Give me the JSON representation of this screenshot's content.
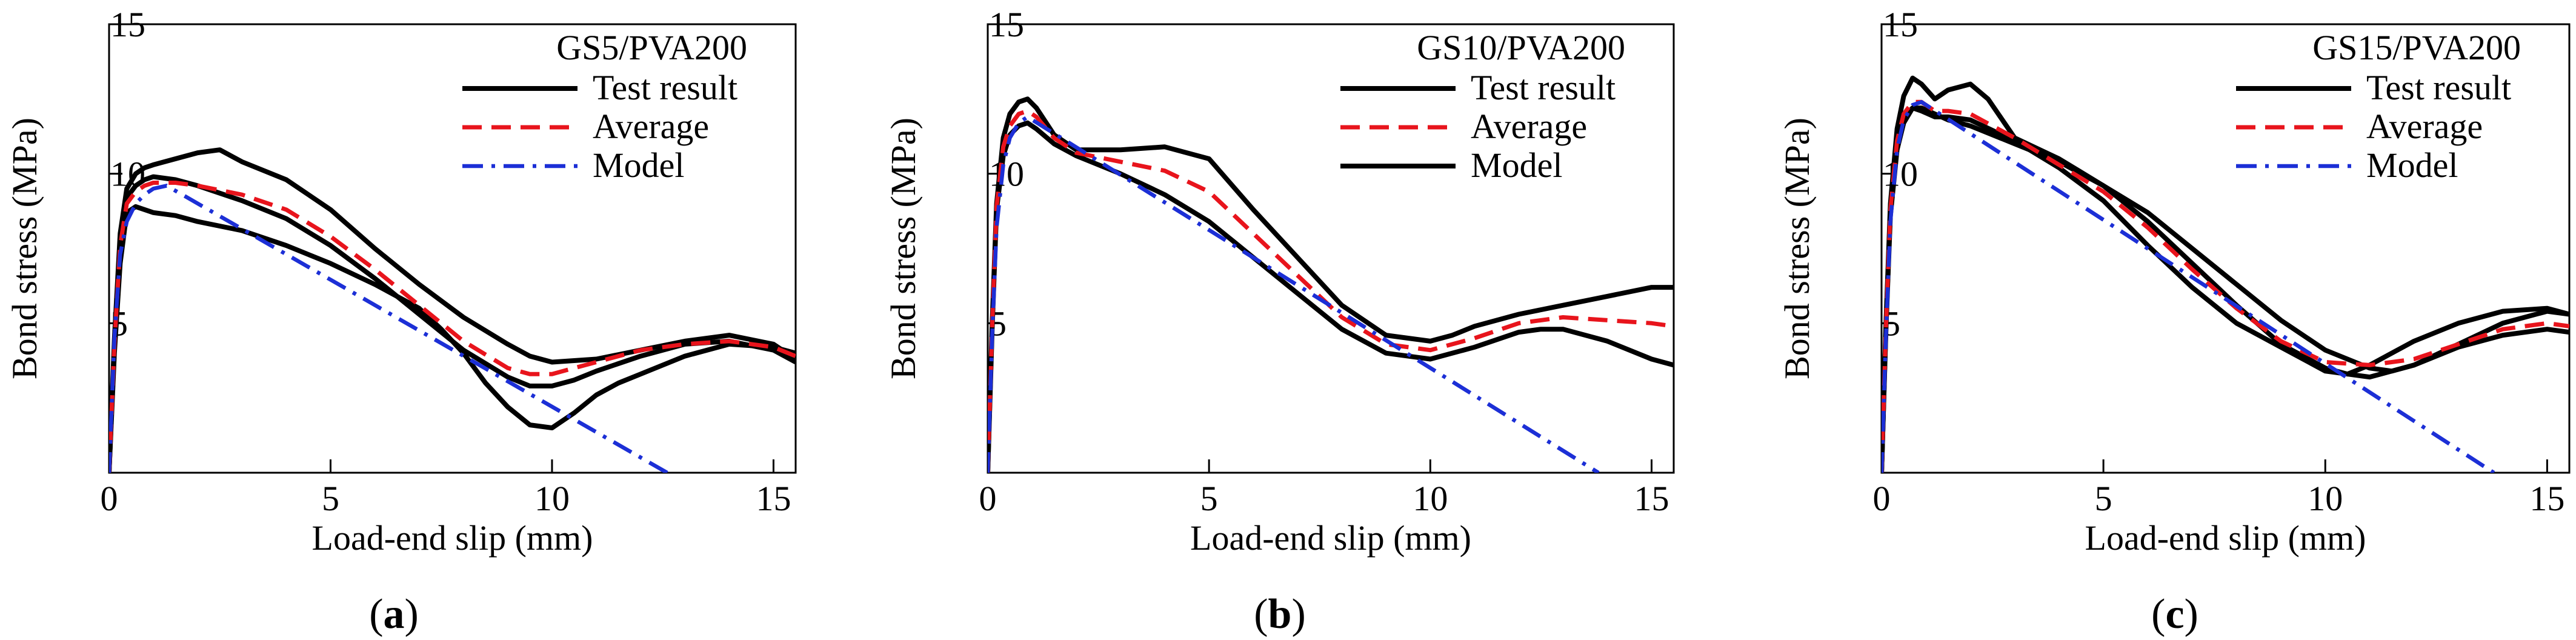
{
  "chart_data": [
    {
      "type": "line",
      "panel_label": "a",
      "title": "GS5/PVA200",
      "xlabel": "Load-end slip (mm)",
      "ylabel": "Bond stress (MPa)",
      "xlim": [
        0,
        15.5
      ],
      "ylim": [
        0,
        15
      ],
      "xticks": [
        0,
        5,
        10,
        15
      ],
      "yticks": [
        5,
        10,
        15
      ],
      "legend": [
        "Test result",
        "Average",
        "Model"
      ],
      "series": [
        {
          "name": "Test result",
          "style": "solid",
          "color": "#000000",
          "x": [
            0,
            0.12,
            0.25,
            0.4,
            0.6,
            1.0,
            1.5,
            2.0,
            3.0,
            4.0,
            5.0,
            6.0,
            7.0,
            7.5,
            8.0,
            8.5,
            9.0,
            9.5,
            10.0,
            10.5,
            11.0,
            11.5,
            12.0,
            13.0,
            14.0,
            15.0,
            15.5
          ],
          "y": [
            0,
            4.0,
            7.0,
            8.7,
            8.9,
            8.7,
            8.6,
            8.4,
            8.1,
            7.6,
            7.0,
            6.3,
            5.5,
            4.8,
            4.0,
            3.0,
            2.2,
            1.6,
            1.5,
            2.0,
            2.6,
            3.0,
            3.3,
            3.9,
            4.3,
            4.2,
            4.0
          ]
        },
        {
          "name": "Test result",
          "style": "solid",
          "color": "#000000",
          "x": [
            0,
            0.12,
            0.25,
            0.4,
            0.6,
            0.8,
            1.0,
            1.5,
            2.0,
            2.5,
            3.0,
            4.0,
            5.0,
            6.0,
            7.0,
            8.0,
            9.0,
            9.5,
            10.0,
            11.0,
            12.0,
            13.0,
            14.0,
            15.0,
            15.5
          ],
          "y": [
            0,
            4.5,
            8.0,
            9.5,
            10.0,
            10.2,
            10.3,
            10.5,
            10.7,
            10.8,
            10.4,
            9.8,
            8.8,
            7.5,
            6.3,
            5.2,
            4.3,
            3.9,
            3.7,
            3.8,
            4.1,
            4.4,
            4.6,
            4.3,
            3.8
          ]
        },
        {
          "name": "Test result",
          "style": "solid",
          "color": "#000000",
          "x": [
            0,
            0.12,
            0.25,
            0.4,
            0.6,
            0.8,
            1.0,
            1.5,
            2.0,
            3.0,
            4.0,
            5.0,
            6.0,
            7.0,
            8.0,
            9.0,
            9.5,
            10.0,
            10.5,
            11.0,
            12.0,
            13.0,
            14.0,
            15.0,
            15.5
          ],
          "y": [
            0,
            4.3,
            7.8,
            9.2,
            9.6,
            9.8,
            9.9,
            9.8,
            9.6,
            9.1,
            8.5,
            7.6,
            6.5,
            5.3,
            4.1,
            3.2,
            2.9,
            2.9,
            3.1,
            3.4,
            3.9,
            4.3,
            4.4,
            4.1,
            3.7
          ]
        },
        {
          "name": "Average",
          "style": "dashed",
          "color": "#e8141c",
          "x": [
            0,
            0.12,
            0.25,
            0.4,
            0.6,
            0.8,
            1.0,
            1.5,
            2.0,
            3.0,
            4.0,
            5.0,
            6.0,
            7.0,
            8.0,
            9.0,
            9.5,
            10.0,
            10.5,
            11.0,
            12.0,
            13.0,
            14.0,
            15.0,
            15.5
          ],
          "y": [
            0,
            4.3,
            7.6,
            9.0,
            9.4,
            9.6,
            9.7,
            9.7,
            9.6,
            9.3,
            8.8,
            7.9,
            6.8,
            5.6,
            4.4,
            3.5,
            3.3,
            3.3,
            3.5,
            3.7,
            4.1,
            4.3,
            4.4,
            4.2,
            3.9
          ]
        },
        {
          "name": "Model",
          "style": "dashdot",
          "color": "#1c2fd6",
          "x": [
            0,
            0.12,
            0.25,
            0.4,
            0.6,
            0.8,
            1.0,
            1.3,
            12.6
          ],
          "y": [
            0,
            4.5,
            7.3,
            8.4,
            9.0,
            9.3,
            9.5,
            9.6,
            0
          ]
        }
      ]
    },
    {
      "type": "line",
      "panel_label": "b",
      "title": "GS10/PVA200",
      "xlabel": "Load-end slip (mm)",
      "ylabel": "Bond stress (MPa)",
      "xlim": [
        0,
        15.5
      ],
      "ylim": [
        0,
        15
      ],
      "xticks": [
        0,
        5,
        10,
        15
      ],
      "yticks": [
        5,
        10,
        15
      ],
      "legend": [
        "Test result",
        "Average",
        "Model"
      ],
      "series": [
        {
          "name": "Test result",
          "style": "solid",
          "color": "#000000",
          "x": [
            0,
            0.1,
            0.2,
            0.35,
            0.5,
            0.7,
            0.9,
            1.1,
            1.5,
            2.0,
            3.0,
            4.0,
            5.0,
            6.0,
            7.0,
            8.0,
            9.0,
            10.0,
            10.5,
            11.0,
            12.0,
            13.0,
            14.0,
            15.0,
            15.5
          ],
          "y": [
            0,
            5.0,
            9.0,
            11.2,
            12.0,
            12.4,
            12.5,
            12.2,
            11.3,
            10.8,
            10.8,
            10.9,
            10.5,
            8.8,
            7.2,
            5.6,
            4.6,
            4.4,
            4.6,
            4.9,
            5.3,
            5.6,
            5.9,
            6.2,
            6.2
          ]
        },
        {
          "name": "Test result",
          "style": "solid",
          "color": "#000000",
          "x": [
            0,
            0.1,
            0.2,
            0.35,
            0.5,
            0.7,
            0.9,
            1.1,
            1.5,
            2.0,
            3.0,
            4.0,
            5.0,
            6.0,
            7.0,
            8.0,
            9.0,
            10.0,
            11.0,
            12.0,
            12.5,
            13.0,
            14.0,
            15.0,
            15.5
          ],
          "y": [
            0,
            4.8,
            8.8,
            10.6,
            11.3,
            11.6,
            11.7,
            11.5,
            11.0,
            10.6,
            10.0,
            9.3,
            8.4,
            7.2,
            6.0,
            4.8,
            4.0,
            3.8,
            4.2,
            4.7,
            4.8,
            4.8,
            4.4,
            3.8,
            3.6
          ]
        },
        {
          "name": "Average",
          "style": "dashed",
          "color": "#e8141c",
          "x": [
            0,
            0.1,
            0.2,
            0.35,
            0.5,
            0.7,
            0.9,
            1.1,
            1.5,
            2.0,
            3.0,
            4.0,
            5.0,
            6.0,
            7.0,
            8.0,
            9.0,
            10.0,
            11.0,
            12.0,
            13.0,
            14.0,
            15.0,
            15.5
          ],
          "y": [
            0,
            4.9,
            8.9,
            10.9,
            11.6,
            12.0,
            12.1,
            11.9,
            11.2,
            10.7,
            10.4,
            10.1,
            9.4,
            8.0,
            6.6,
            5.2,
            4.3,
            4.1,
            4.5,
            5.0,
            5.2,
            5.1,
            5.0,
            4.9
          ]
        },
        {
          "name": "Model",
          "style": "dashdot",
          "color": "#1c2fd6",
          "x": [
            0,
            0.1,
            0.2,
            0.35,
            0.5,
            0.7,
            0.9,
            13.8
          ],
          "y": [
            0,
            4.6,
            8.2,
            10.3,
            11.2,
            11.7,
            11.9,
            0
          ]
        }
      ]
    },
    {
      "type": "line",
      "panel_label": "c",
      "title": "GS15/PVA200",
      "xlabel": "Load-end slip (mm)",
      "ylabel": "Bond stress (MPa)",
      "xlim": [
        0,
        15.5
      ],
      "ylim": [
        0,
        15
      ],
      "xticks": [
        0,
        5,
        10,
        15
      ],
      "yticks": [
        5,
        10,
        15
      ],
      "legend": [
        "Test result",
        "Average",
        "Model"
      ],
      "series": [
        {
          "name": "Test result",
          "style": "solid",
          "color": "#000000",
          "x": [
            0,
            0.1,
            0.2,
            0.35,
            0.5,
            0.7,
            0.9,
            1.2,
            1.5,
            2.0,
            2.4,
            3.0,
            4.0,
            5.0,
            6.0,
            7.0,
            8.0,
            9.0,
            10.0,
            10.5,
            11.0,
            12.0,
            13.0,
            14.0,
            15.0,
            15.5
          ],
          "y": [
            0,
            5.0,
            9.0,
            11.5,
            12.6,
            13.2,
            13.0,
            12.5,
            12.8,
            13.0,
            12.5,
            11.2,
            10.5,
            9.6,
            8.4,
            7.0,
            5.6,
            4.3,
            3.5,
            3.3,
            3.2,
            3.6,
            4.3,
            5.0,
            5.4,
            5.3
          ]
        },
        {
          "name": "Test result",
          "style": "solid",
          "color": "#000000",
          "x": [
            0,
            0.1,
            0.2,
            0.35,
            0.5,
            0.7,
            0.9,
            1.2,
            1.5,
            2.0,
            3.0,
            4.0,
            5.0,
            6.0,
            7.0,
            8.0,
            9.0,
            10.0,
            10.5,
            11.0,
            12.0,
            13.0,
            14.0,
            15.0,
            15.5
          ],
          "y": [
            0,
            4.9,
            8.8,
            11.0,
            11.9,
            12.2,
            12.1,
            11.9,
            11.9,
            11.8,
            11.1,
            10.2,
            9.1,
            7.6,
            6.2,
            5.0,
            4.2,
            3.4,
            3.3,
            3.6,
            4.4,
            5.0,
            5.4,
            5.5,
            5.3
          ]
        },
        {
          "name": "Test result",
          "style": "solid",
          "color": "#000000",
          "x": [
            0,
            0.1,
            0.2,
            0.35,
            0.5,
            0.7,
            0.9,
            1.2,
            1.5,
            2.0,
            3.0,
            4.0,
            5.0,
            6.0,
            7.0,
            8.0,
            9.0,
            10.0,
            11.0,
            11.5,
            12.0,
            13.0,
            14.0,
            15.0,
            15.5
          ],
          "y": [
            0,
            4.8,
            8.6,
            10.8,
            11.7,
            12.2,
            12.2,
            12.0,
            11.8,
            11.6,
            11.0,
            10.4,
            9.6,
            8.7,
            7.5,
            6.3,
            5.1,
            4.1,
            3.5,
            3.4,
            3.6,
            4.2,
            4.6,
            4.8,
            4.7
          ]
        },
        {
          "name": "Average",
          "style": "dashed",
          "color": "#e8141c",
          "x": [
            0,
            0.1,
            0.2,
            0.35,
            0.5,
            0.7,
            0.9,
            1.2,
            1.5,
            2.0,
            3.0,
            4.0,
            5.0,
            6.0,
            7.0,
            8.0,
            9.0,
            10.0,
            11.0,
            12.0,
            13.0,
            14.0,
            15.0,
            15.5
          ],
          "y": [
            0,
            4.9,
            8.8,
            11.1,
            12.0,
            12.4,
            12.4,
            12.1,
            12.1,
            12.0,
            11.2,
            10.3,
            9.4,
            8.2,
            6.8,
            5.5,
            4.4,
            3.7,
            3.6,
            3.8,
            4.3,
            4.8,
            5.0,
            4.9
          ]
        },
        {
          "name": "Model",
          "style": "dashdot",
          "color": "#1c2fd6",
          "x": [
            0,
            0.1,
            0.2,
            0.35,
            0.5,
            0.7,
            0.9,
            13.8
          ],
          "y": [
            0,
            4.6,
            8.4,
            10.8,
            11.8,
            12.3,
            12.4,
            0
          ]
        }
      ]
    }
  ]
}
